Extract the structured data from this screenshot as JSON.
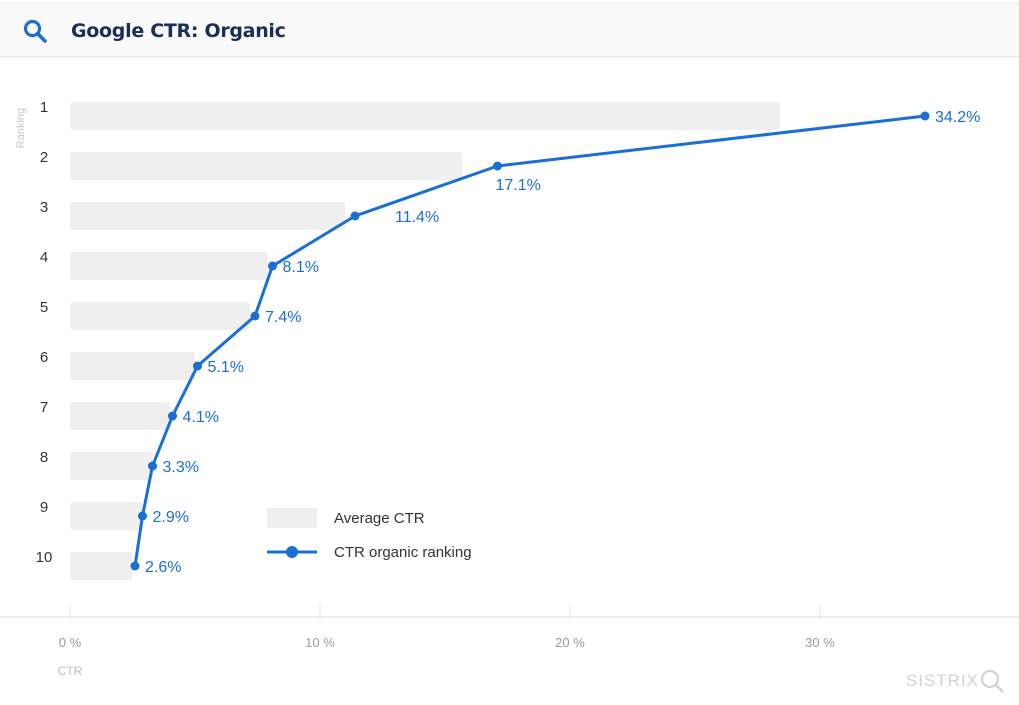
{
  "header": {
    "title": "Google CTR: Organic",
    "icon": "search-icon"
  },
  "brand": {
    "name": "SISTRIX"
  },
  "colors": {
    "line": "#1a6fd6",
    "bar": "#efefef",
    "title": "#1a2e5a"
  },
  "chart_data": {
    "type": "bar+line",
    "orientation": "horizontal",
    "title": "Google CTR: Organic",
    "ylabel": "Ranking",
    "xlabel": "CTR",
    "categories": [
      "1",
      "2",
      "3",
      "4",
      "5",
      "6",
      "7",
      "8",
      "9",
      "10"
    ],
    "xlim": [
      0,
      37
    ],
    "xticks": [
      0,
      10,
      20,
      30
    ],
    "xtick_labels": [
      "0 %",
      "10 %",
      "20 %",
      "30 %"
    ],
    "grid": false,
    "legend_position": "bottom-center-inside",
    "series": [
      {
        "name": "Average CTR",
        "type": "bar",
        "values": [
          28.4,
          15.7,
          11.0,
          7.9,
          7.2,
          5.0,
          4.0,
          3.3,
          2.9,
          2.5
        ]
      },
      {
        "name": "CTR organic ranking",
        "type": "line",
        "values": [
          34.2,
          17.1,
          11.4,
          8.1,
          7.4,
          5.1,
          4.1,
          3.3,
          2.9,
          2.6
        ],
        "labels": [
          "34.2%",
          "17.1%",
          "11.4%",
          "8.1%",
          "7.4%",
          "5.1%",
          "4.1%",
          "3.3%",
          "2.9%",
          "2.6%"
        ]
      }
    ]
  }
}
